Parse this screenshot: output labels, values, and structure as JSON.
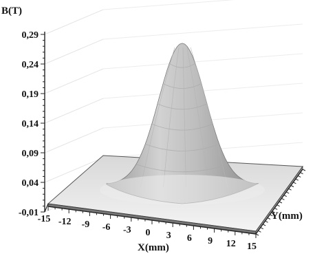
{
  "chart_data": {
    "type": "surface",
    "title": "",
    "zlabel": "B(T)",
    "xlabel": "X(mm)",
    "ylabel": "Y(mm)",
    "z_ticks": [
      "0,29",
      "0,24",
      "0,19",
      "0,14",
      "0,09",
      "0,04",
      "-0,01"
    ],
    "x_ticks": [
      "-15",
      "-12",
      "-9",
      "-6",
      "-3",
      "0",
      "3",
      "6",
      "9",
      "12",
      "15"
    ],
    "zlim": [
      -0.01,
      0.29
    ],
    "xlim": [
      -15,
      15
    ],
    "ylim": [
      -15,
      15
    ],
    "peak": {
      "x": 0,
      "y": 0,
      "B": 0.275
    },
    "grid": true,
    "surface_color": "#c9c9c9"
  }
}
